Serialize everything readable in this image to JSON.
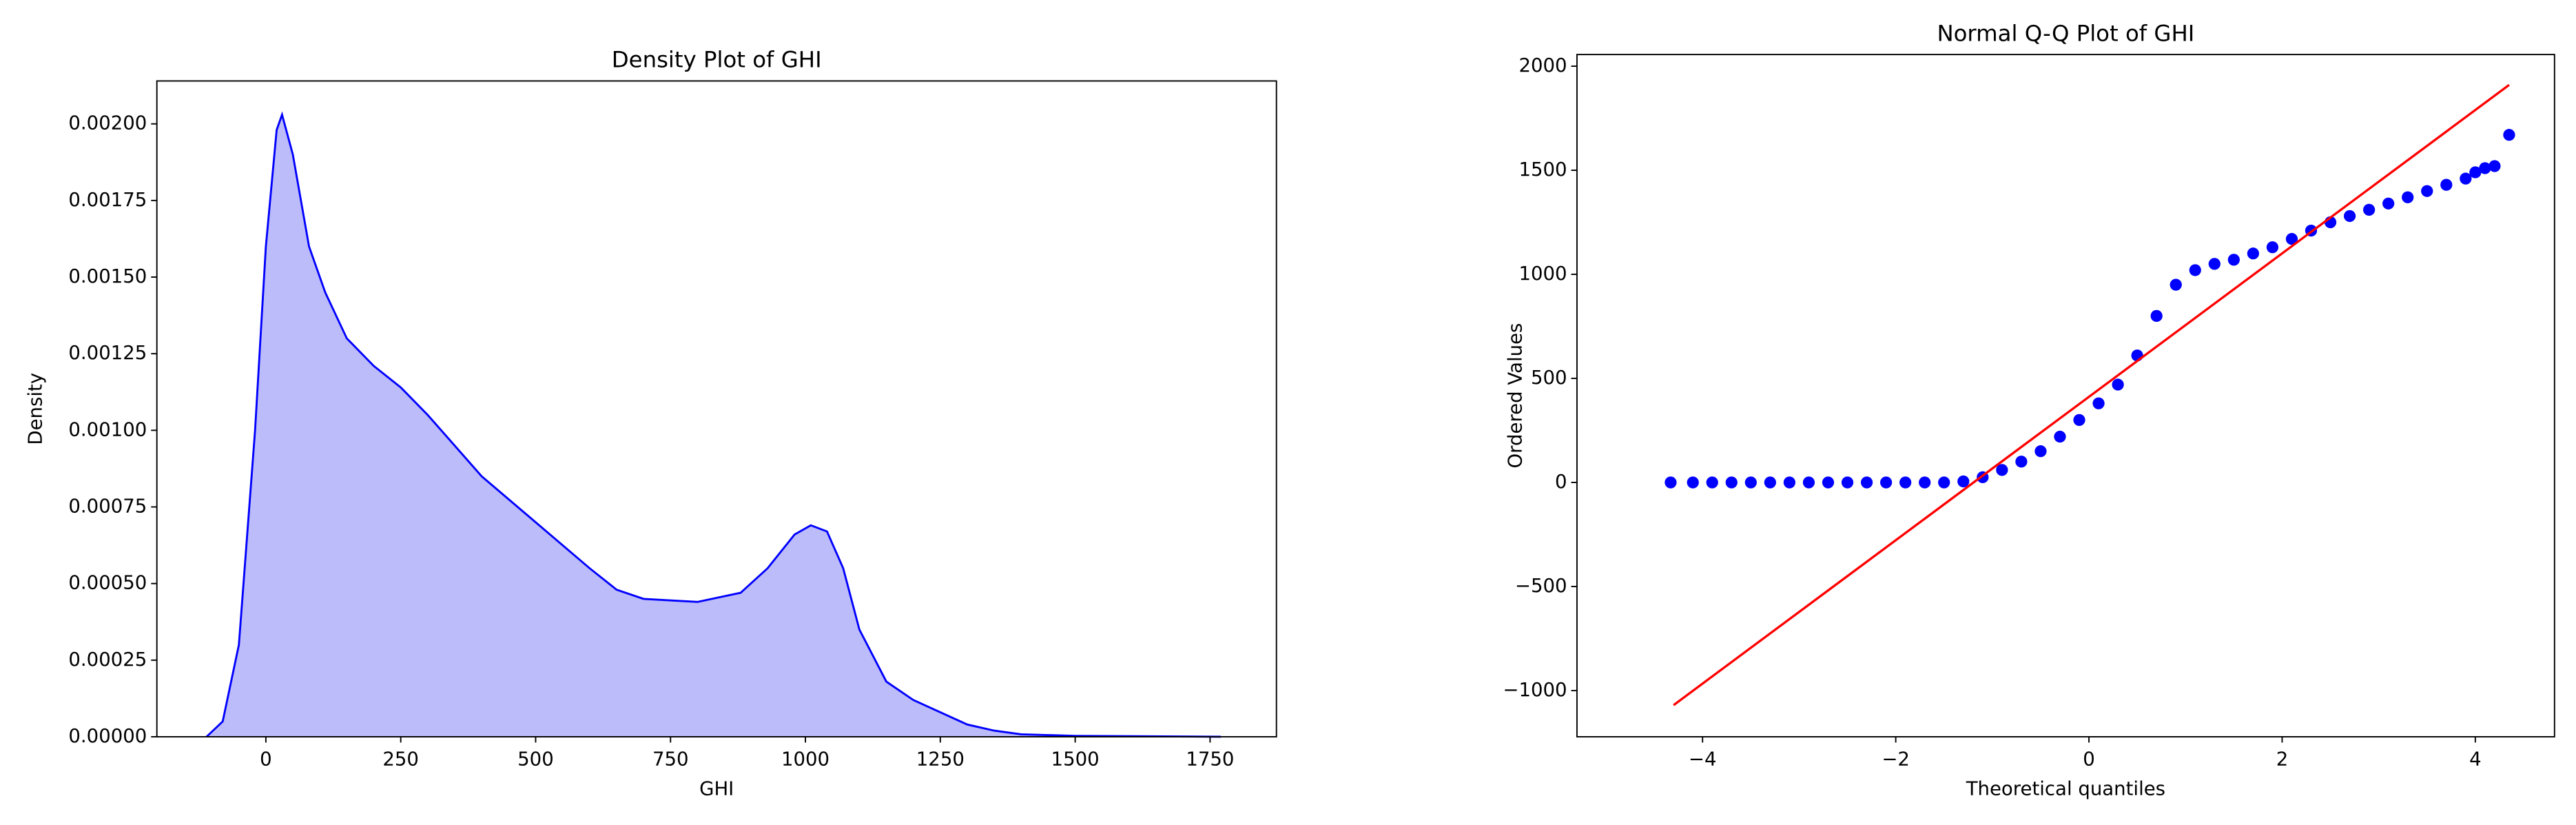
{
  "chart_data": [
    {
      "type": "area",
      "title": "Density Plot of GHI",
      "xlabel": "GHI",
      "ylabel": "Density",
      "series": [
        {
          "color": "#0000ff",
          "fill": "#bcbcfa",
          "x": [
            -110,
            -80,
            -50,
            -20,
            0,
            20,
            30,
            50,
            80,
            110,
            150,
            200,
            250,
            300,
            350,
            400,
            500,
            600,
            650,
            700,
            800,
            880,
            930,
            980,
            1010,
            1040,
            1070,
            1100,
            1150,
            1200,
            1250,
            1300,
            1350,
            1400,
            1500,
            1770
          ],
          "values": [
            0,
            5e-05,
            0.0003,
            0.001,
            0.0016,
            0.00198,
            0.00203,
            0.0019,
            0.0016,
            0.00145,
            0.0013,
            0.00121,
            0.00114,
            0.00105,
            0.00095,
            0.00085,
            0.0007,
            0.00055,
            0.00048,
            0.00045,
            0.00044,
            0.00047,
            0.00055,
            0.00066,
            0.00069,
            0.00067,
            0.00055,
            0.00035,
            0.00018,
            0.00012,
            8e-05,
            4e-05,
            2e-05,
            8e-06,
            3e-06,
            0
          ]
        }
      ],
      "xlim": [
        -202,
        1873
      ],
      "xticks": [
        0,
        250,
        500,
        750,
        1000,
        1250,
        1500,
        1750
      ],
      "ylim": [
        0,
        0.00214
      ],
      "yticks": [
        {
          "value": 0,
          "label": "0.00000"
        },
        {
          "value": 0.00025,
          "label": "0.00025"
        },
        {
          "value": 0.0005,
          "label": "0.00050"
        },
        {
          "value": 0.00075,
          "label": "0.00075"
        },
        {
          "value": 0.001,
          "label": "0.00100"
        },
        {
          "value": 0.00125,
          "label": "0.00125"
        },
        {
          "value": 0.0015,
          "label": "0.00150"
        },
        {
          "value": 0.00175,
          "label": "0.00175"
        },
        {
          "value": 0.002,
          "label": "0.00200"
        }
      ]
    },
    {
      "type": "qq",
      "title": "Normal Q-Q Plot of GHI",
      "xlabel": "Theoretical quantiles",
      "ylabel": "Ordered Values",
      "series": [
        {
          "type": "scatter",
          "color": "#0000ff",
          "x": [
            -4.33,
            -4.1,
            -3.9,
            -3.7,
            -3.5,
            -3.3,
            -3.1,
            -2.9,
            -2.7,
            -2.5,
            -2.3,
            -2.1,
            -1.9,
            -1.7,
            -1.5,
            -1.3,
            -1.1,
            -0.9,
            -0.7,
            -0.5,
            -0.3,
            -0.1,
            0.1,
            0.3,
            0.5,
            0.7,
            0.9,
            1.1,
            1.3,
            1.5,
            1.7,
            1.9,
            2.1,
            2.3,
            2.5,
            2.7,
            2.9,
            3.1,
            3.3,
            3.5,
            3.7,
            3.9,
            4.0,
            4.1,
            4.2,
            4.35
          ],
          "values": [
            0,
            0,
            0,
            0,
            0,
            0,
            0,
            0,
            0,
            0,
            0,
            0,
            0,
            0,
            0,
            5,
            25,
            60,
            100,
            150,
            220,
            300,
            380,
            470,
            610,
            800,
            950,
            1020,
            1050,
            1070,
            1100,
            1130,
            1170,
            1210,
            1250,
            1280,
            1310,
            1340,
            1370,
            1400,
            1430,
            1460,
            1490,
            1510,
            1520,
            1670
          ]
        },
        {
          "type": "line",
          "color": "#ff0000",
          "x": [
            -4.3,
            4.35
          ],
          "values": [
            -1070,
            1910
          ]
        }
      ],
      "xlim": [
        -5.3,
        4.82
      ],
      "xticks": [
        {
          "value": -4,
          "label": "−4"
        },
        {
          "value": -2,
          "label": "−2"
        },
        0,
        2,
        4
      ],
      "ylim": [
        -1222,
        2056
      ],
      "yticks": [
        {
          "value": -1000,
          "label": "−1000"
        },
        {
          "value": -500,
          "label": "−500"
        },
        0,
        500,
        1000,
        1500,
        2000
      ]
    }
  ]
}
